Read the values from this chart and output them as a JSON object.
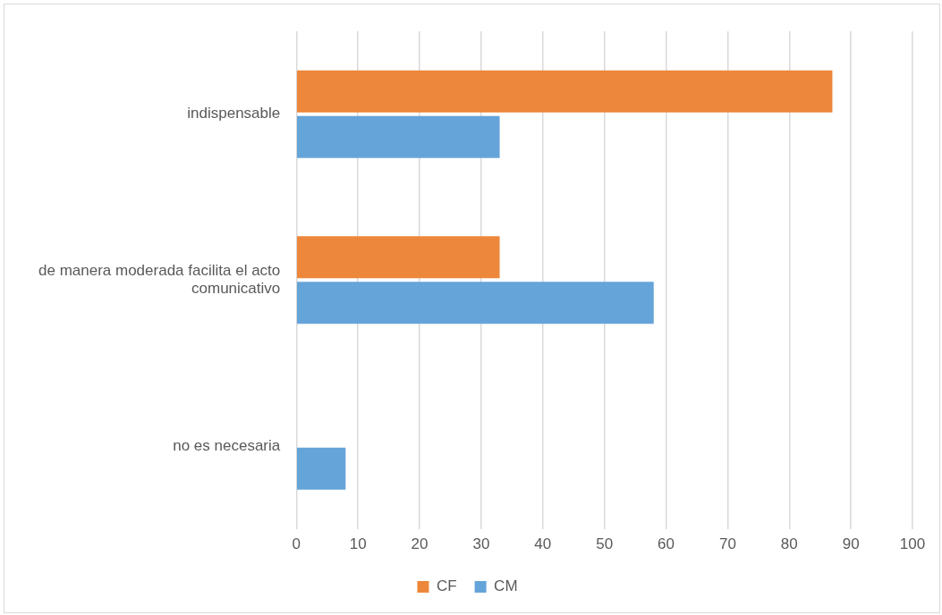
{
  "chart_data": {
    "type": "bar",
    "orientation": "horizontal",
    "categories": [
      "indispensable",
      "de manera moderada facilita el acto comunicativo",
      "no es necesaria"
    ],
    "series": [
      {
        "name": "CF",
        "color": "#ed873b",
        "values": [
          87,
          33,
          0
        ]
      },
      {
        "name": "CM",
        "color": "#65a4d9",
        "values": [
          33,
          58,
          8
        ]
      }
    ],
    "xlim": [
      0,
      100
    ],
    "xticks": [
      0,
      10,
      20,
      30,
      40,
      50,
      60,
      70,
      80,
      90,
      100
    ],
    "grid": "x",
    "legend": "bottom"
  }
}
